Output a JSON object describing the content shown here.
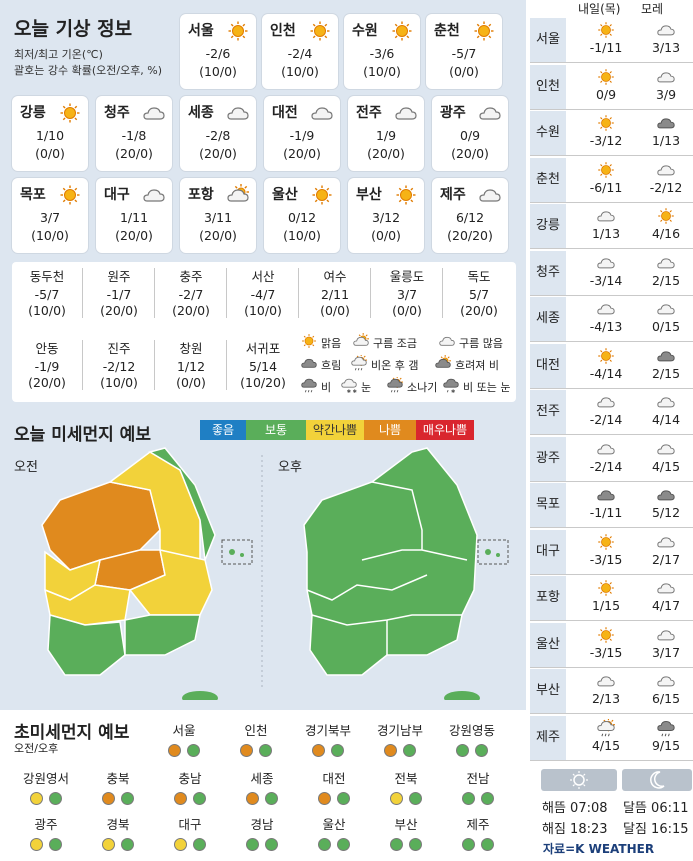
{
  "header": {
    "title": "오늘 기상 정보",
    "sub1": "최저/최고 기온(℃)",
    "sub2": "괄호는 강수 확률(오전/오후, %)"
  },
  "cities": [
    {
      "name": "서울",
      "icon": "sun",
      "temp": "-2/6",
      "rain": "(10/0)"
    },
    {
      "name": "인천",
      "icon": "sun",
      "temp": "-2/4",
      "rain": "(10/0)"
    },
    {
      "name": "수원",
      "icon": "sun",
      "temp": "-3/6",
      "rain": "(10/0)"
    },
    {
      "name": "춘천",
      "icon": "sun",
      "temp": "-5/7",
      "rain": "(0/0)"
    },
    {
      "name": "강릉",
      "icon": "sun",
      "temp": "1/10",
      "rain": "(0/0)"
    },
    {
      "name": "청주",
      "icon": "cloud",
      "temp": "-1/8",
      "rain": "(20/0)"
    },
    {
      "name": "세종",
      "icon": "cloud",
      "temp": "-2/8",
      "rain": "(20/0)"
    },
    {
      "name": "대전",
      "icon": "cloud",
      "temp": "-1/9",
      "rain": "(20/0)"
    },
    {
      "name": "전주",
      "icon": "cloud",
      "temp": "1/9",
      "rain": "(20/0)"
    },
    {
      "name": "광주",
      "icon": "cloud",
      "temp": "0/9",
      "rain": "(20/0)"
    },
    {
      "name": "목포",
      "icon": "sun",
      "temp": "3/7",
      "rain": "(10/0)"
    },
    {
      "name": "대구",
      "icon": "cloud",
      "temp": "1/11",
      "rain": "(20/0)"
    },
    {
      "name": "포항",
      "icon": "cloud-sun",
      "temp": "3/11",
      "rain": "(20/0)"
    },
    {
      "name": "울산",
      "icon": "sun",
      "temp": "0/12",
      "rain": "(10/0)"
    },
    {
      "name": "부산",
      "icon": "sun",
      "temp": "3/12",
      "rain": "(0/0)"
    },
    {
      "name": "제주",
      "icon": "cloud",
      "temp": "6/12",
      "rain": "(20/20)"
    }
  ],
  "small_cities": [
    {
      "name": "동두천",
      "temp": "-5/7",
      "rain": "(10/0)"
    },
    {
      "name": "원주",
      "temp": "-1/7",
      "rain": "(20/0)"
    },
    {
      "name": "충주",
      "temp": "-2/7",
      "rain": "(20/0)"
    },
    {
      "name": "서산",
      "temp": "-4/7",
      "rain": "(10/0)"
    },
    {
      "name": "여수",
      "temp": "2/11",
      "rain": "(0/0)"
    },
    {
      "name": "울릉도",
      "temp": "3/7",
      "rain": "(0/0)"
    },
    {
      "name": "독도",
      "temp": "5/7",
      "rain": "(20/0)"
    },
    {
      "name": "안동",
      "temp": "-1/9",
      "rain": "(20/0)"
    },
    {
      "name": "진주",
      "temp": "-2/12",
      "rain": "(10/0)"
    },
    {
      "name": "창원",
      "temp": "1/12",
      "rain": "(0/0)"
    },
    {
      "name": "서귀포",
      "temp": "5/14",
      "rain": "(10/20)"
    }
  ],
  "legend": [
    {
      "icon": "sun",
      "label": "맑음"
    },
    {
      "icon": "cloud-sun",
      "label": "구름 조금"
    },
    {
      "icon": "cloud",
      "label": "구름 많음"
    },
    {
      "icon": "cloud-dark",
      "label": "흐림"
    },
    {
      "icon": "rain-sun",
      "label": "비온 후 갬"
    },
    {
      "icon": "sun-cloud-dark",
      "label": "흐려져 비"
    },
    {
      "icon": "rain",
      "label": "비"
    },
    {
      "icon": "snow",
      "label": "눈"
    },
    {
      "icon": "shower",
      "label": "소나기"
    },
    {
      "icon": "rain-snow",
      "label": "비 또는 눈"
    }
  ],
  "dust": {
    "title": "오늘 미세먼지 예보",
    "am": "오전",
    "pm": "오후",
    "scale": [
      {
        "label": "좋음",
        "color": "#1f7fc4"
      },
      {
        "label": "보통",
        "color": "#5aae5a"
      },
      {
        "label": "약간나쁨",
        "color": "#f2d23a"
      },
      {
        "label": "나쁨",
        "color": "#e08a1e"
      },
      {
        "label": "매우나쁨",
        "color": "#d9262e"
      }
    ]
  },
  "fine": {
    "title": "초미세먼지 예보",
    "sub": "오전/오후",
    "regions": [
      {
        "name": "서울",
        "am": "orange",
        "pm": "green"
      },
      {
        "name": "인천",
        "am": "orange",
        "pm": "green"
      },
      {
        "name": "경기북부",
        "am": "orange",
        "pm": "green"
      },
      {
        "name": "경기남부",
        "am": "orange",
        "pm": "green"
      },
      {
        "name": "강원영동",
        "am": "green",
        "pm": "green"
      },
      {
        "name": "강원영서",
        "am": "yellow",
        "pm": "green"
      },
      {
        "name": "충북",
        "am": "orange",
        "pm": "green"
      },
      {
        "name": "충남",
        "am": "orange",
        "pm": "green"
      },
      {
        "name": "세종",
        "am": "orange",
        "pm": "green"
      },
      {
        "name": "대전",
        "am": "orange",
        "pm": "green"
      },
      {
        "name": "전북",
        "am": "yellow",
        "pm": "green"
      },
      {
        "name": "전남",
        "am": "green",
        "pm": "green"
      },
      {
        "name": "광주",
        "am": "yellow",
        "pm": "green"
      },
      {
        "name": "경북",
        "am": "yellow",
        "pm": "green"
      },
      {
        "name": "대구",
        "am": "yellow",
        "pm": "green"
      },
      {
        "name": "경남",
        "am": "green",
        "pm": "green"
      },
      {
        "name": "울산",
        "am": "green",
        "pm": "green"
      },
      {
        "name": "부산",
        "am": "green",
        "pm": "green"
      },
      {
        "name": "제주",
        "am": "green",
        "pm": "green"
      }
    ]
  },
  "forecast": {
    "head1": "내일(목)",
    "head2": "모레",
    "rows": [
      {
        "name": "서울",
        "d1i": "sun",
        "d1": "-1/11",
        "d2i": "cloud",
        "d2": "3/13"
      },
      {
        "name": "인천",
        "d1i": "sun",
        "d1": "0/9",
        "d2i": "cloud",
        "d2": "3/9"
      },
      {
        "name": "수원",
        "d1i": "sun",
        "d1": "-3/12",
        "d2i": "cloud-dark",
        "d2": "1/13"
      },
      {
        "name": "춘천",
        "d1i": "sun",
        "d1": "-6/11",
        "d2i": "cloud",
        "d2": "-2/12"
      },
      {
        "name": "강릉",
        "d1i": "cloud",
        "d1": "1/13",
        "d2i": "sun",
        "d2": "4/16"
      },
      {
        "name": "청주",
        "d1i": "cloud",
        "d1": "-3/14",
        "d2i": "cloud",
        "d2": "2/15"
      },
      {
        "name": "세종",
        "d1i": "cloud",
        "d1": "-4/13",
        "d2i": "cloud",
        "d2": "0/15"
      },
      {
        "name": "대전",
        "d1i": "sun",
        "d1": "-4/14",
        "d2i": "cloud-dark",
        "d2": "2/15"
      },
      {
        "name": "전주",
        "d1i": "cloud",
        "d1": "-2/14",
        "d2i": "cloud",
        "d2": "4/14"
      },
      {
        "name": "광주",
        "d1i": "cloud",
        "d1": "-2/14",
        "d2i": "cloud",
        "d2": "4/15"
      },
      {
        "name": "목포",
        "d1i": "cloud-dark",
        "d1": "-1/11",
        "d2i": "cloud-dark",
        "d2": "5/12"
      },
      {
        "name": "대구",
        "d1i": "sun",
        "d1": "-3/15",
        "d2i": "cloud",
        "d2": "2/17"
      },
      {
        "name": "포항",
        "d1i": "sun",
        "d1": "1/15",
        "d2i": "cloud",
        "d2": "4/17"
      },
      {
        "name": "울산",
        "d1i": "sun",
        "d1": "-3/15",
        "d2i": "cloud",
        "d2": "3/17"
      },
      {
        "name": "부산",
        "d1i": "cloud",
        "d1": "2/13",
        "d2i": "cloud",
        "d2": "6/15"
      },
      {
        "name": "제주",
        "d1i": "rain-sun",
        "d1": "4/15",
        "d2i": "rain",
        "d2": "9/15"
      }
    ],
    "sunrise": "해뜸 07:08",
    "sunset": "해짐 18:23",
    "moonrise": "달뜸 06:11",
    "moonset": "달짐 16:15",
    "source": "자료=K WEATHER"
  }
}
